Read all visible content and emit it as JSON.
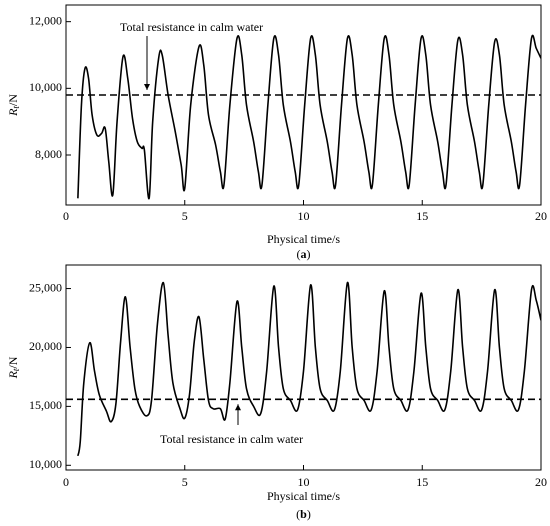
{
  "chart_data": [
    {
      "type": "line",
      "panel_label": "(a)",
      "xlabel": "Physical time/s",
      "ylabel": "R",
      "ylabel_subscript": "t",
      "ylabel_unit": "/N",
      "annotation": "Total resistance in calm water",
      "reference_line": 9800,
      "xlim": [
        0,
        20
      ],
      "xticks": [
        0,
        5,
        10,
        15,
        20
      ],
      "ylim": [
        6500,
        12500
      ],
      "yticks": [
        {
          "value": 8000,
          "label": "8,000"
        },
        {
          "value": 10000,
          "label": "10,000"
        },
        {
          "value": 12000,
          "label": "12,000"
        }
      ],
      "series": [
        {
          "color": "#000000",
          "x": [
            0.5,
            0.65,
            0.8,
            0.95,
            1.1,
            1.3,
            1.5,
            1.65,
            1.8,
            1.97,
            2.15,
            2.4,
            2.6,
            2.8,
            3.0,
            3.2,
            3.3,
            3.5,
            3.65,
            3.9,
            4.05,
            4.3,
            4.6,
            4.85,
            5.0,
            5.25,
            5.6,
            5.8,
            6.0,
            6.3,
            6.5,
            6.65,
            6.9,
            7.2,
            7.4,
            7.6,
            7.9,
            8.1,
            8.25,
            8.5,
            8.75,
            8.95,
            9.15,
            9.45,
            9.65,
            9.8,
            10.05,
            10.3,
            10.5,
            10.7,
            11.0,
            11.2,
            11.35,
            11.6,
            11.85,
            12.05,
            12.25,
            12.55,
            12.75,
            12.9,
            13.15,
            13.4,
            13.6,
            13.8,
            14.1,
            14.3,
            14.45,
            14.7,
            14.95,
            15.15,
            15.35,
            15.65,
            15.85,
            16.0,
            16.25,
            16.5,
            16.7,
            16.9,
            17.2,
            17.4,
            17.55,
            17.8,
            18.05,
            18.25,
            18.45,
            18.75,
            18.95,
            19.1,
            19.35,
            19.6,
            19.8,
            20.0
          ],
          "values": [
            6700,
            9500,
            10600,
            10300,
            9200,
            8600,
            8650,
            8800,
            7800,
            6800,
            9000,
            10950,
            10300,
            9100,
            8400,
            8200,
            8150,
            6700,
            9000,
            10900,
            11000,
            9800,
            8700,
            7700,
            7000,
            9500,
            11250,
            10700,
            9200,
            8300,
            7500,
            7100,
            9500,
            11500,
            11000,
            9500,
            8400,
            7500,
            7100,
            9500,
            11500,
            11000,
            9500,
            8400,
            7500,
            7100,
            9500,
            11500,
            11000,
            9500,
            8400,
            7500,
            7100,
            9500,
            11500,
            11000,
            9500,
            8400,
            7500,
            7100,
            9500,
            11500,
            11000,
            9500,
            8400,
            7500,
            7100,
            9500,
            11500,
            11000,
            9500,
            8400,
            7500,
            7100,
            9500,
            11450,
            11000,
            9500,
            8400,
            7500,
            7100,
            9500,
            11400,
            11000,
            9500,
            8400,
            7500,
            7100,
            9500,
            11500,
            11200,
            10900
          ]
        }
      ]
    },
    {
      "type": "line",
      "panel_label": "(b)",
      "xlabel": "Physical time/s",
      "ylabel": "R",
      "ylabel_subscript": "t",
      "ylabel_unit": "/N",
      "annotation": "Total resistance in calm water",
      "reference_line": 15600,
      "xlim": [
        0,
        20
      ],
      "xticks": [
        0,
        5,
        10,
        15,
        20
      ],
      "ylim": [
        9600,
        27000
      ],
      "yticks": [
        {
          "value": 10000,
          "label": "10,000"
        },
        {
          "value": 15000,
          "label": "15,000"
        },
        {
          "value": 20000,
          "label": "20,000"
        },
        {
          "value": 25000,
          "label": "25,000"
        }
      ],
      "series": [
        {
          "color": "#000000",
          "x": [
            0.5,
            0.6,
            0.75,
            1.0,
            1.2,
            1.4,
            1.7,
            1.9,
            2.1,
            2.3,
            2.5,
            2.7,
            2.9,
            3.1,
            3.4,
            3.6,
            3.85,
            4.1,
            4.3,
            4.5,
            4.8,
            5.0,
            5.2,
            5.4,
            5.6,
            5.8,
            6.0,
            6.2,
            6.5,
            6.7,
            6.9,
            7.2,
            7.4,
            7.6,
            7.9,
            8.2,
            8.45,
            8.75,
            8.95,
            9.15,
            9.45,
            9.75,
            10.0,
            10.3,
            10.5,
            10.7,
            11.0,
            11.3,
            11.55,
            11.85,
            12.05,
            12.25,
            12.55,
            12.85,
            13.1,
            13.4,
            13.6,
            13.8,
            14.1,
            14.4,
            14.65,
            14.95,
            15.15,
            15.35,
            15.65,
            15.95,
            16.2,
            16.5,
            16.7,
            16.9,
            17.2,
            17.5,
            17.75,
            18.05,
            18.25,
            18.45,
            18.75,
            19.05,
            19.3,
            19.6,
            19.8,
            20.0
          ],
          "values": [
            10800,
            12000,
            17000,
            20400,
            18000,
            16000,
            14600,
            13700,
            15200,
            20500,
            24300,
            20000,
            16500,
            15000,
            14200,
            15500,
            22000,
            25500,
            21000,
            17000,
            14800,
            14000,
            16000,
            20500,
            22600,
            19000,
            15500,
            14800,
            14800,
            13900,
            17000,
            23900,
            20000,
            16500,
            15000,
            14400,
            18000,
            25200,
            20000,
            16500,
            15500,
            14700,
            18000,
            25300,
            20000,
            16500,
            15500,
            14700,
            18000,
            25500,
            20000,
            16500,
            15500,
            14700,
            18000,
            24800,
            20000,
            16500,
            15500,
            14700,
            18000,
            24600,
            20000,
            16500,
            15500,
            14700,
            18000,
            24900,
            20000,
            16500,
            15500,
            14700,
            18000,
            24900,
            20000,
            16500,
            15500,
            14700,
            18000,
            24900,
            24000,
            22300
          ]
        }
      ]
    }
  ]
}
